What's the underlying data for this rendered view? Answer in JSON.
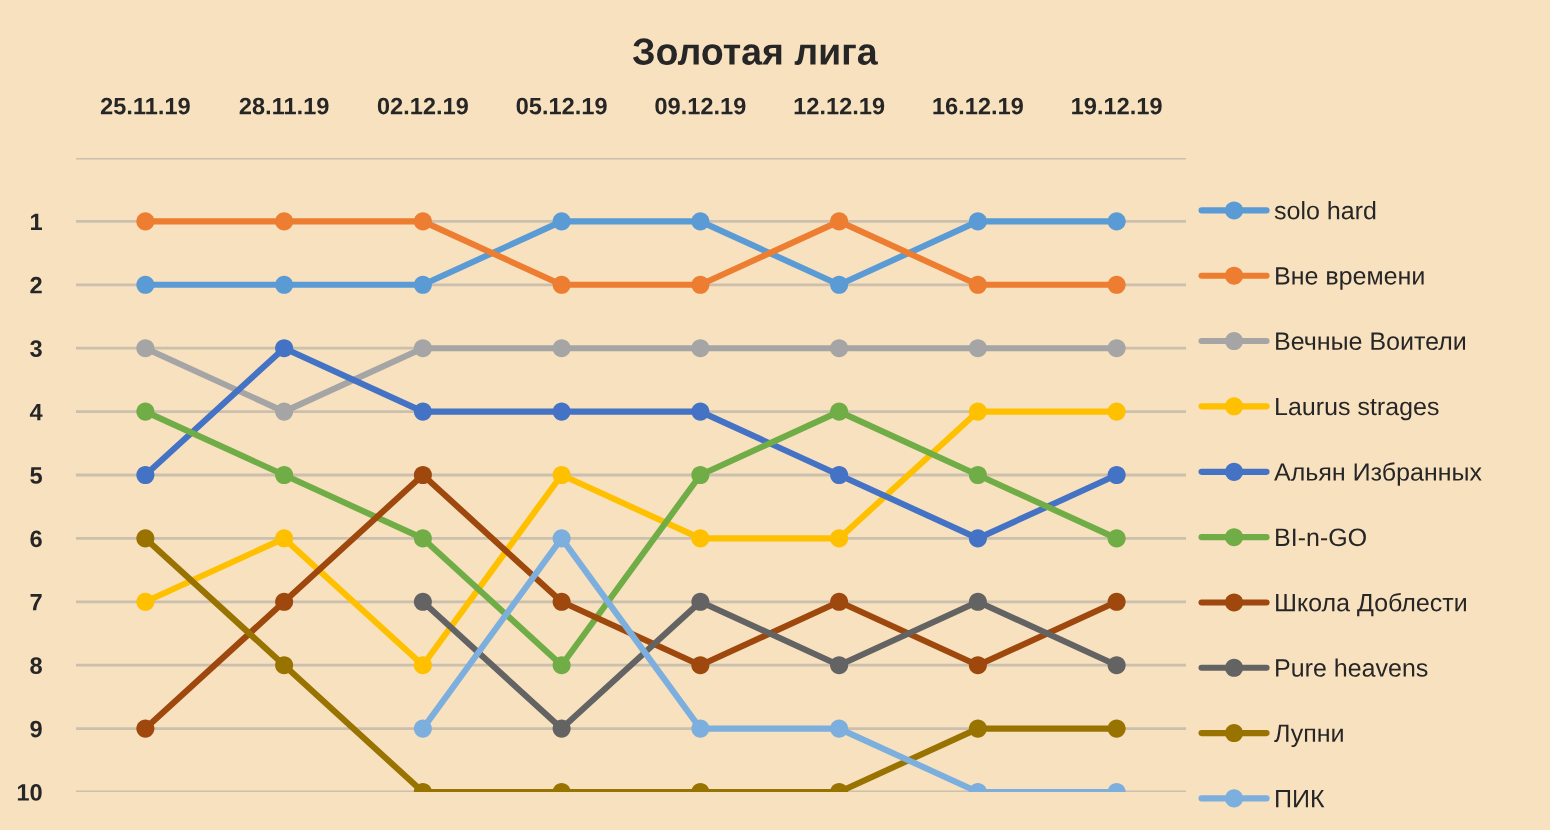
{
  "chart_data": {
    "type": "line",
    "title": "Золотая лига",
    "categories": [
      "25.11.19",
      "28.11.19",
      "02.12.19",
      "05.12.19",
      "09.12.19",
      "12.12.19",
      "16.12.19",
      "19.12.19"
    ],
    "series": [
      {
        "name": "solo hard",
        "color": "#5b9bd5",
        "values": [
          2,
          2,
          2,
          1,
          1,
          2,
          1,
          1
        ]
      },
      {
        "name": "Вне времени",
        "color": "#ed7d31",
        "values": [
          1,
          1,
          1,
          2,
          2,
          1,
          2,
          2
        ]
      },
      {
        "name": "Вечные Воители",
        "color": "#a5a5a5",
        "values": [
          3,
          4,
          3,
          3,
          3,
          3,
          3,
          3
        ]
      },
      {
        "name": "Laurus strages",
        "color": "#ffc000",
        "values": [
          7,
          6,
          8,
          5,
          6,
          6,
          4,
          4
        ]
      },
      {
        "name": "Альян Избранных",
        "color": "#4472c4",
        "values": [
          5,
          3,
          4,
          4,
          4,
          5,
          6,
          5
        ]
      },
      {
        "name": "BI-n-GO",
        "color": "#70ad47",
        "values": [
          4,
          5,
          6,
          8,
          5,
          4,
          5,
          6
        ]
      },
      {
        "name": "Школа Доблести",
        "color": "#9e480e",
        "values": [
          9,
          7,
          5,
          7,
          8,
          7,
          8,
          7
        ]
      },
      {
        "name": "Pure heavens",
        "color": "#636363",
        "values": [
          null,
          null,
          7,
          9,
          7,
          8,
          7,
          8
        ]
      },
      {
        "name": "Лупни",
        "color": "#997300",
        "values": [
          6,
          8,
          10,
          10,
          10,
          10,
          9,
          9
        ]
      },
      {
        "name": "ПИК",
        "color": "#7cafdd",
        "values": [
          null,
          null,
          9,
          6,
          9,
          9,
          10,
          10
        ]
      }
    ],
    "ylim": [
      10,
      0
    ],
    "yticks": [
      {
        "value": 0,
        "label": null
      },
      1,
      2,
      3,
      4,
      5,
      6,
      7,
      8,
      9,
      10
    ],
    "grid": "y",
    "legend": "right",
    "marker": "circle",
    "line_style": "solid"
  }
}
